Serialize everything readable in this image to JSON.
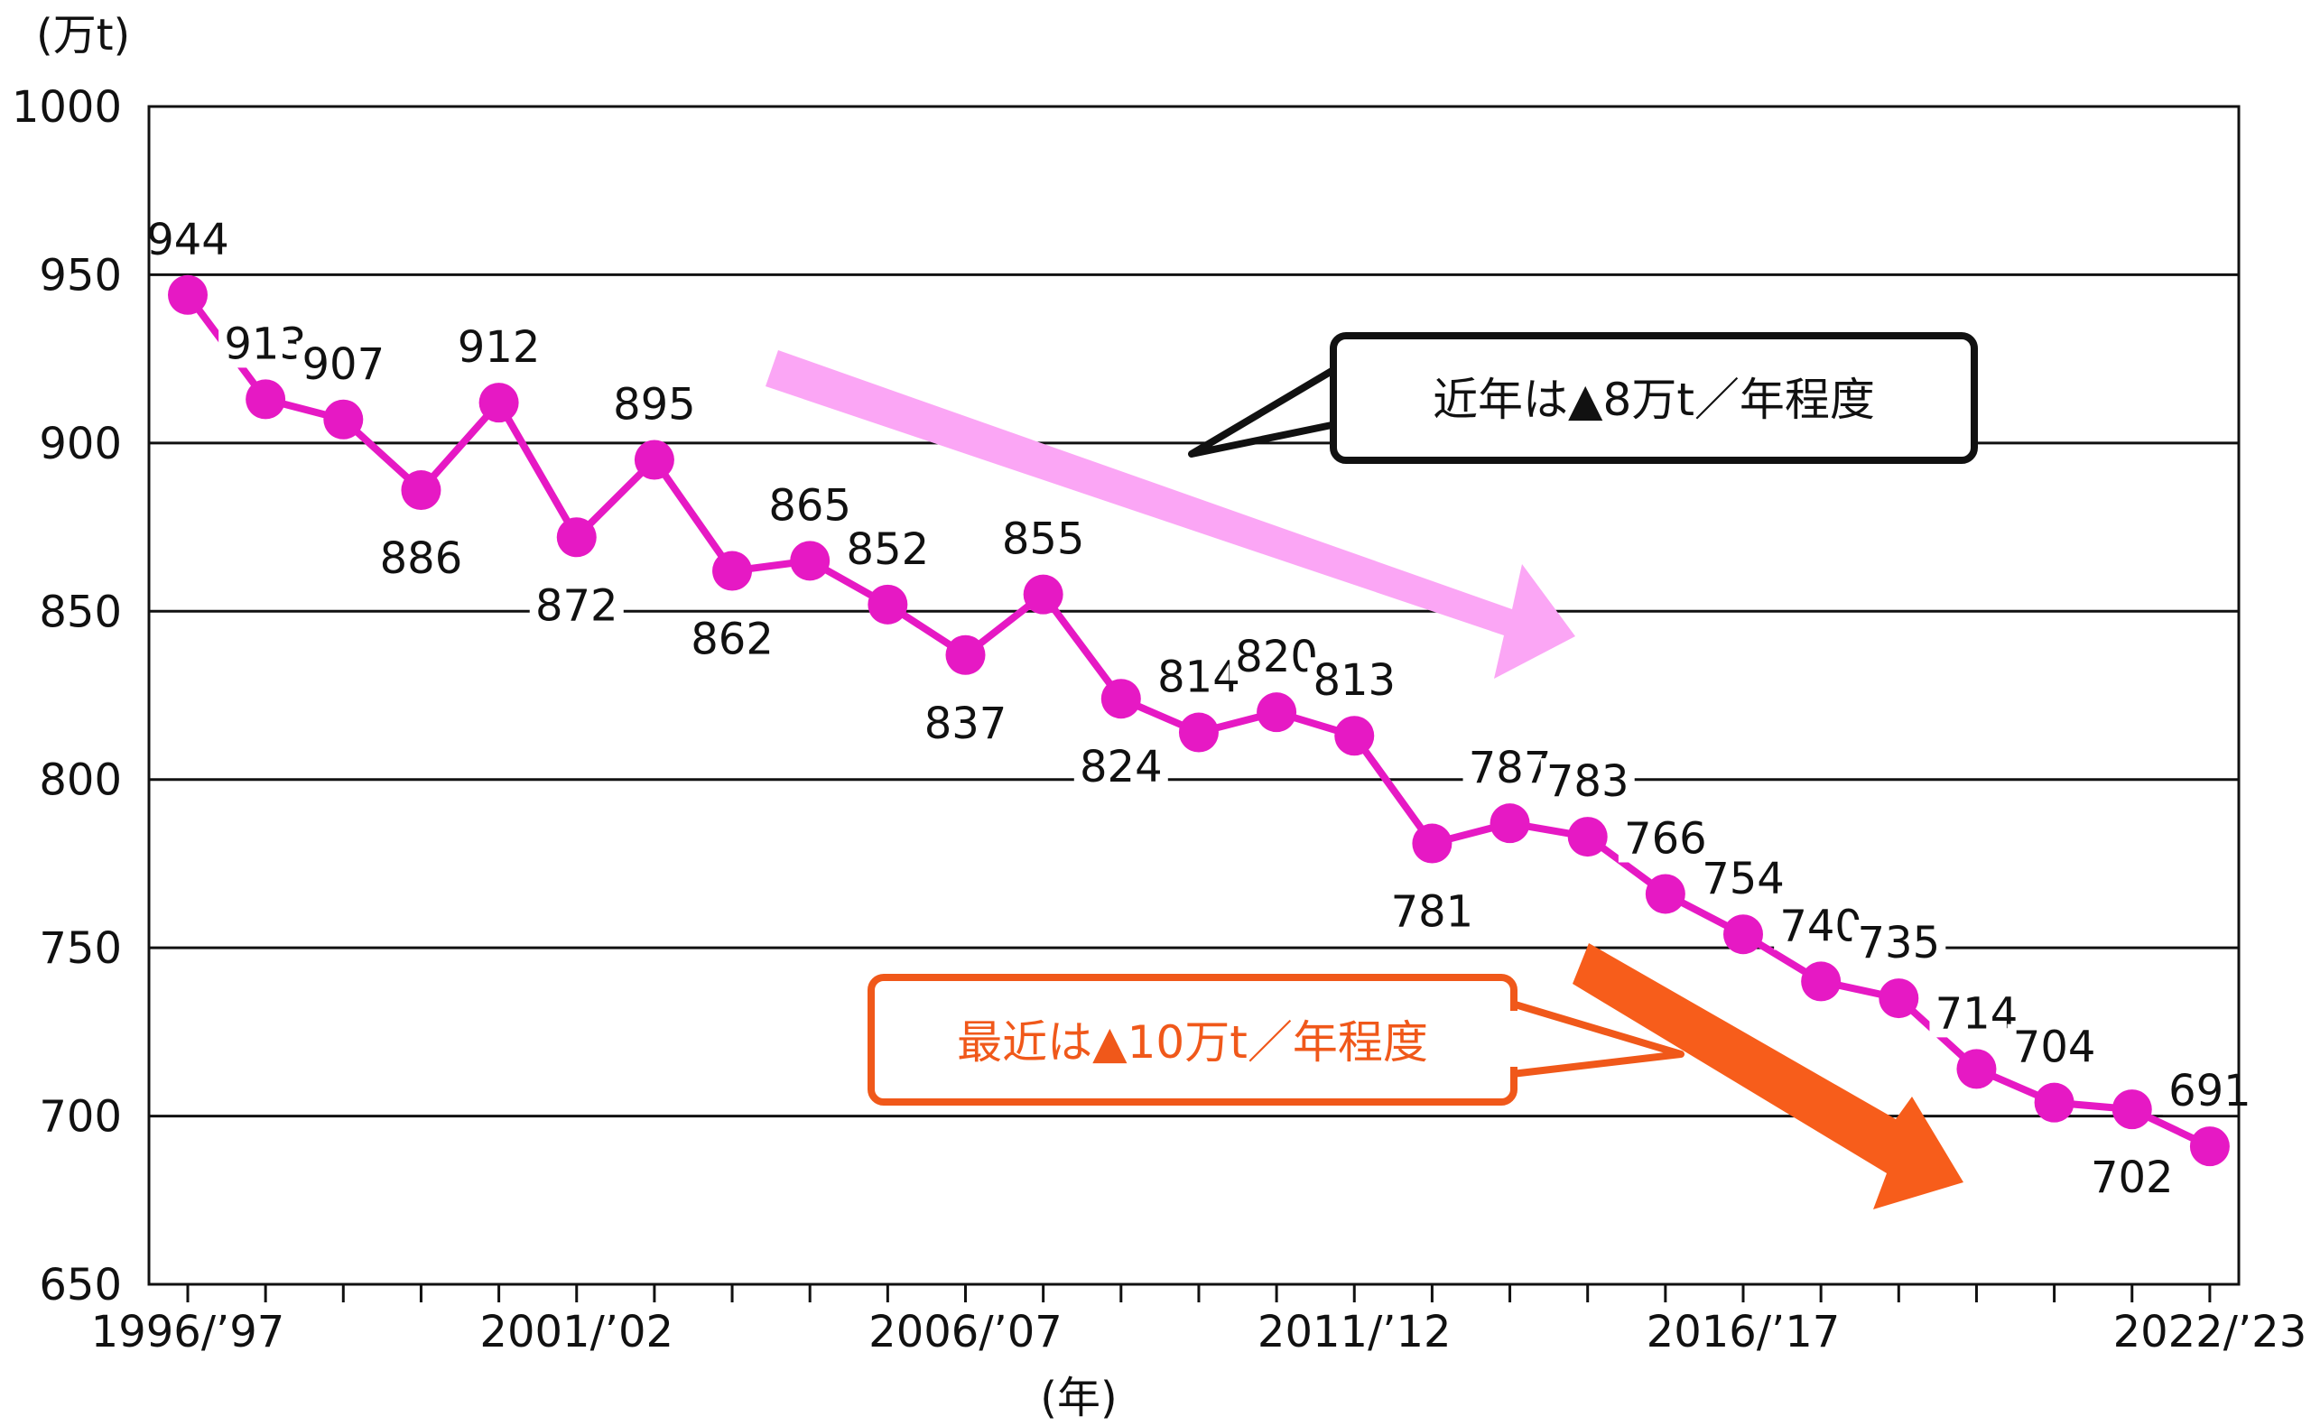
{
  "chart_data": {
    "type": "line",
    "y_unit_label": "(万t)",
    "x_unit_label": "(年)",
    "ylim": [
      650,
      1000
    ],
    "y_ticks": [
      650,
      700,
      750,
      800,
      850,
      900,
      950,
      1000
    ],
    "grid": true,
    "x_tick_labels": [
      {
        "index": 0,
        "label": "1996/’97"
      },
      {
        "index": 5,
        "label": "2001/’02"
      },
      {
        "index": 10,
        "label": "2006/’07"
      },
      {
        "index": 15,
        "label": "2011/’12"
      },
      {
        "index": 20,
        "label": "2016/’17"
      },
      {
        "index": 26,
        "label": "2022/’23"
      }
    ],
    "series": [
      {
        "color": "#e619c4",
        "values": [
          944,
          913,
          907,
          886,
          912,
          872,
          895,
          862,
          865,
          852,
          837,
          855,
          824,
          814,
          820,
          813,
          781,
          787,
          783,
          766,
          754,
          740,
          735,
          714,
          704,
          702,
          691
        ],
        "label_side": [
          "above",
          "above",
          "above",
          "below",
          "above",
          "below",
          "above",
          "below",
          "above",
          "above",
          "below",
          "above",
          "below",
          "above",
          "above",
          "above",
          "below",
          "above",
          "above",
          "above",
          "above",
          "above",
          "above",
          "above",
          "above",
          "below",
          "above"
        ]
      }
    ],
    "annotations": [
      {
        "text": "近年は▲8万t／年程度",
        "color": "#111111",
        "arrow_color": "#fba6f5"
      },
      {
        "text": "最近は▲10万t／年程度",
        "color": "#f0581a",
        "arrow_color": "#f75d1b"
      }
    ]
  }
}
